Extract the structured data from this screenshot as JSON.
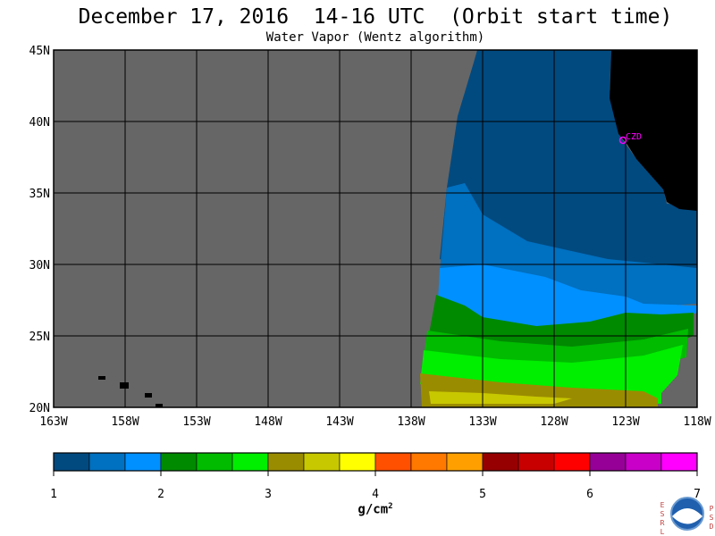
{
  "header": {
    "title": "December 17, 2016  14-16 UTC  (Orbit start time)",
    "subtitle": "Water Vapor (Wentz algorithm)"
  },
  "map": {
    "lon_ticks": [
      "163W",
      "158W",
      "153W",
      "148W",
      "143W",
      "138W",
      "133W",
      "128W",
      "123W",
      "118W"
    ],
    "lat_ticks": [
      "45N",
      "40N",
      "35N",
      "30N",
      "25N",
      "20N"
    ],
    "station_label": "CZD",
    "colors": {
      "nodata": "#666666",
      "land": "#000000",
      "station": "#ff00ff"
    }
  },
  "legend": {
    "ticks": [
      "1",
      "2",
      "3",
      "4",
      "5",
      "6",
      "7"
    ],
    "unit_base": "g/cm",
    "unit_exp": "2",
    "colors": [
      "#004a80",
      "#0070c0",
      "#0090ff",
      "#008a00",
      "#00bb00",
      "#00ee00",
      "#9a8c00",
      "#c8c800",
      "#ffff00",
      "#ff5000",
      "#ff7800",
      "#ffa000",
      "#960000",
      "#c80000",
      "#ff0000",
      "#960096",
      "#c800c8",
      "#ff00ff"
    ]
  },
  "logo": {
    "left_letters": [
      "E",
      "S",
      "R",
      "L"
    ],
    "right_letters": [
      "P",
      "S",
      "D"
    ],
    "text": "NOAA"
  }
}
